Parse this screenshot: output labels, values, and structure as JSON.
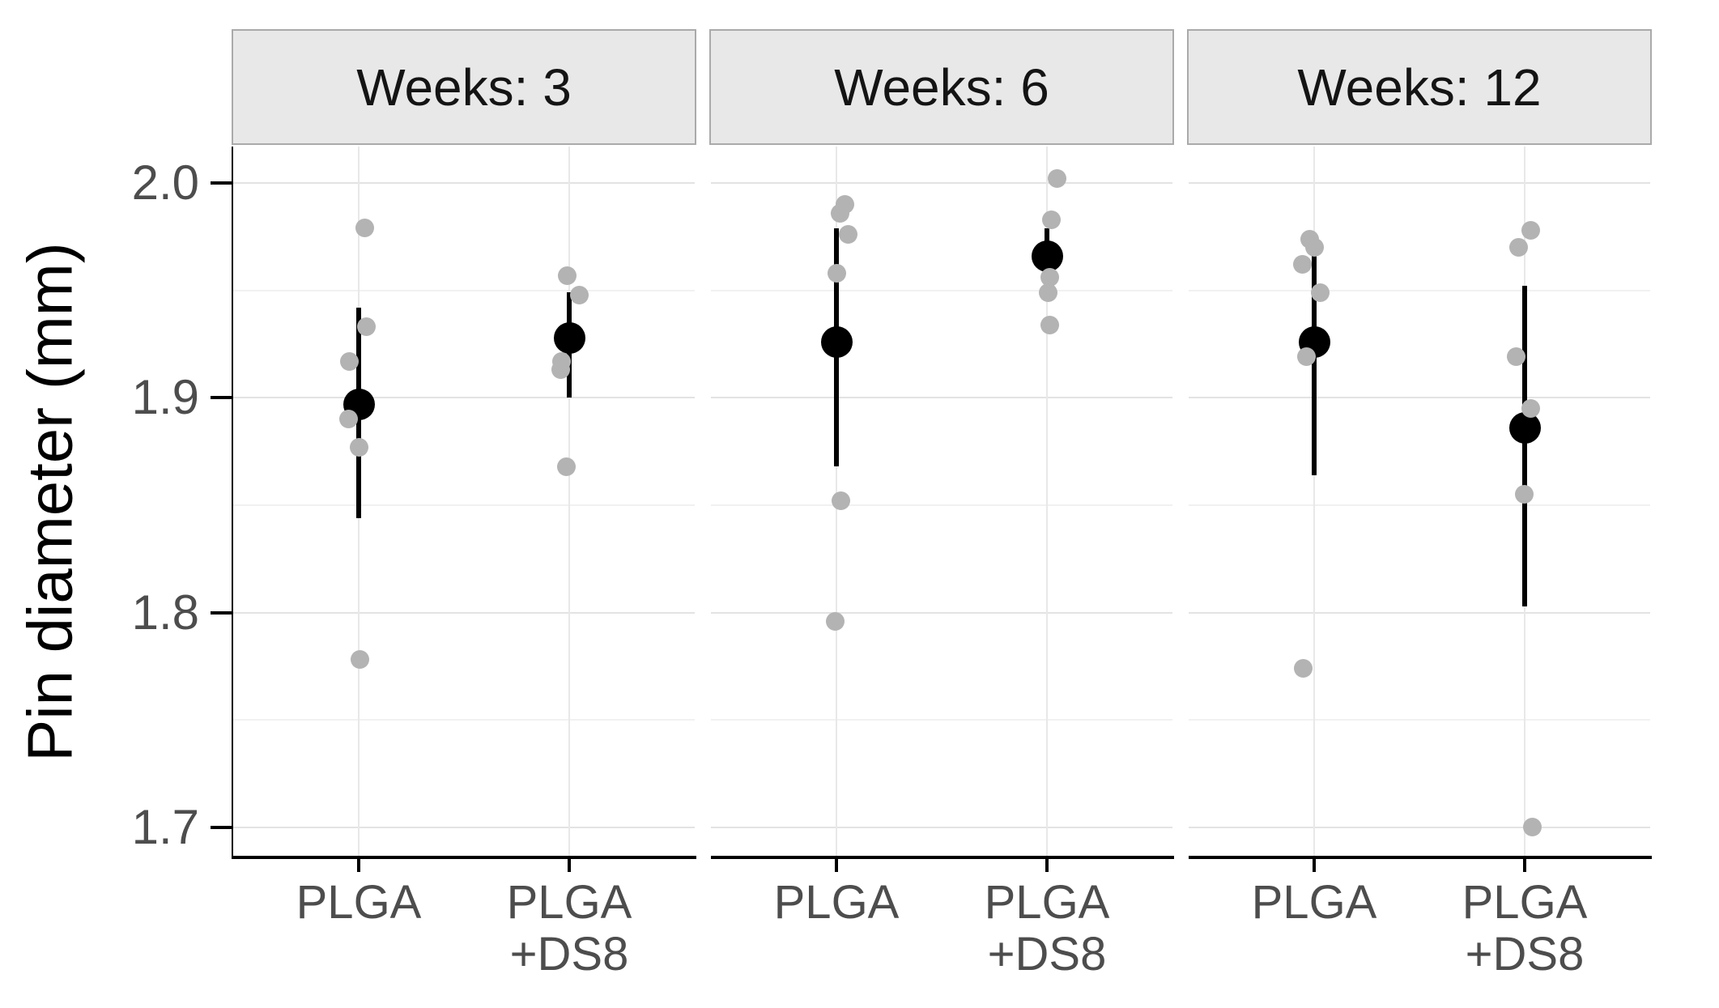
{
  "chart_data": {
    "type": "scatter",
    "title": "",
    "ylabel": "Pin diameter (mm)",
    "xlabel": "",
    "ylim": [
      1.686,
      2.017
    ],
    "grid": true,
    "legend": "none",
    "y_major_ticks": [
      {
        "value": 2.0,
        "label": "2.0"
      },
      {
        "value": 1.9,
        "label": "1.9"
      },
      {
        "value": 1.8,
        "label": "1.8"
      },
      {
        "value": 1.7,
        "label": "1.7"
      }
    ],
    "y_minor_ticks": [
      1.95,
      1.85,
      1.75
    ],
    "x_categories": [
      {
        "id": "PLGA",
        "lines": [
          "PLGA"
        ]
      },
      {
        "id": "PLGA+DS8",
        "lines": [
          "PLGA",
          "+DS8"
        ]
      }
    ],
    "panels": [
      {
        "label": "Weeks: 3",
        "groups": [
          {
            "category": "PLGA",
            "mean": 1.897,
            "err_low": 1.844,
            "err_high": 1.942,
            "points": [
              {
                "v": 1.979,
                "dx": 7
              },
              {
                "v": 1.933,
                "dx": 9
              },
              {
                "v": 1.917,
                "dx": -12
              },
              {
                "v": 1.89,
                "dx": -13
              },
              {
                "v": 1.877,
                "dx": 0
              },
              {
                "v": 1.778,
                "dx": 1
              }
            ]
          },
          {
            "category": "PLGA+DS8",
            "mean": 1.928,
            "err_low": 1.9,
            "err_high": 1.949,
            "points": [
              {
                "v": 1.957,
                "dx": -3
              },
              {
                "v": 1.948,
                "dx": 12
              },
              {
                "v": 1.917,
                "dx": -10
              },
              {
                "v": 1.913,
                "dx": -11
              },
              {
                "v": 1.868,
                "dx": -4
              }
            ]
          }
        ]
      },
      {
        "label": "Weeks: 6",
        "groups": [
          {
            "category": "PLGA",
            "mean": 1.926,
            "err_low": 1.868,
            "err_high": 1.979,
            "points": [
              {
                "v": 1.99,
                "dx": 10
              },
              {
                "v": 1.986,
                "dx": 4
              },
              {
                "v": 1.976,
                "dx": 14
              },
              {
                "v": 1.958,
                "dx": 0
              },
              {
                "v": 1.852,
                "dx": 5
              },
              {
                "v": 1.796,
                "dx": -2
              }
            ]
          },
          {
            "category": "PLGA+DS8",
            "mean": 1.966,
            "err_low": 1.953,
            "err_high": 1.979,
            "points": [
              {
                "v": 2.002,
                "dx": 12
              },
              {
                "v": 1.983,
                "dx": 5
              },
              {
                "v": 1.956,
                "dx": 3
              },
              {
                "v": 1.949,
                "dx": 1
              },
              {
                "v": 1.934,
                "dx": 3
              }
            ]
          }
        ]
      },
      {
        "label": "Weeks: 12",
        "groups": [
          {
            "category": "PLGA",
            "mean": 1.926,
            "err_low": 1.864,
            "err_high": 1.966,
            "points": [
              {
                "v": 1.974,
                "dx": -6
              },
              {
                "v": 1.97,
                "dx": 0
              },
              {
                "v": 1.962,
                "dx": -15
              },
              {
                "v": 1.949,
                "dx": 7
              },
              {
                "v": 1.919,
                "dx": -10
              },
              {
                "v": 1.774,
                "dx": -14
              }
            ]
          },
          {
            "category": "PLGA+DS8",
            "mean": 1.886,
            "err_low": 1.803,
            "err_high": 1.952,
            "points": [
              {
                "v": 1.978,
                "dx": 7
              },
              {
                "v": 1.97,
                "dx": -8
              },
              {
                "v": 1.919,
                "dx": -11
              },
              {
                "v": 1.895,
                "dx": 7
              },
              {
                "v": 1.855,
                "dx": -1
              },
              {
                "v": 1.7,
                "dx": 9
              }
            ]
          }
        ]
      }
    ],
    "colors": {
      "jitter_point": "#b3b3b3",
      "mean_point": "#000000",
      "error_bar": "#000000",
      "axis_line": "#000000",
      "grid_major": "#e3e3e3",
      "grid_minor": "#f1f1f1",
      "grid_column": "#e8e8e8",
      "strip_background": "#e8e8e8",
      "strip_border": "#aaaaaa",
      "tick_label": "#4d4d4d",
      "axis_title": "#000000"
    }
  }
}
